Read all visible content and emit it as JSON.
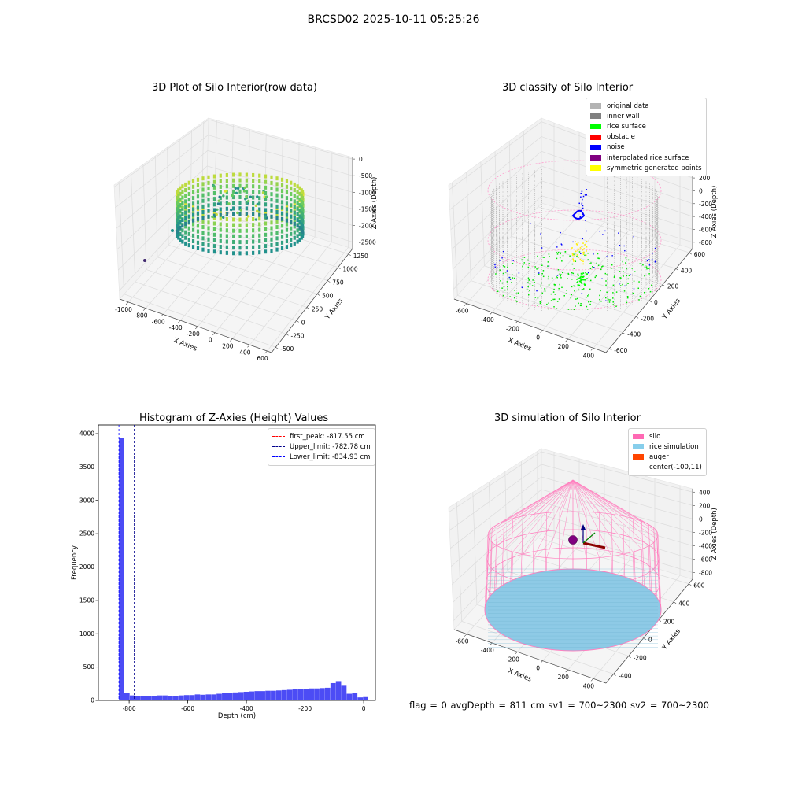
{
  "figure": {
    "suptitle": "BRCSD02 2025-10-11 05:25:26",
    "footer": "flag = 0     avgDepth = 811 cm  sv1 = 700~2300  sv2 = 700~2300"
  },
  "chart_data": [
    {
      "type": "scatter",
      "projection": "3d",
      "title": "3D Plot of Silo Interior(row data)",
      "xlabel": "X Axies",
      "ylabel": "Y Axies",
      "zlabel": "Z Axies (Depth)",
      "xticks": [
        -1000,
        -800,
        -600,
        -400,
        -200,
        0,
        200,
        400,
        600
      ],
      "yticks": [
        -500,
        -250,
        0,
        250,
        500,
        750,
        1000,
        1250
      ],
      "zticks": [
        -2500,
        -2000,
        -1500,
        -1000,
        -500,
        0
      ],
      "xlim": [
        -1100,
        650
      ],
      "ylim": [
        -600,
        1350
      ],
      "zlim": [
        -2700,
        50
      ],
      "colormap": "viridis",
      "grid": true
    },
    {
      "type": "scatter",
      "projection": "3d",
      "title": "3D classify of Silo Interior",
      "xlabel": "X Axies",
      "ylabel": "Y Axies",
      "zlabel": "Z Axies (Depth)",
      "xticks": [
        -600,
        -400,
        -200,
        0,
        200,
        400
      ],
      "yticks": [
        -600,
        -400,
        -200,
        0,
        200,
        400,
        600
      ],
      "zticks": [
        -800,
        -600,
        -400,
        -200,
        0,
        200
      ],
      "xlim": [
        -700,
        500
      ],
      "ylim": [
        -650,
        650
      ],
      "zlim": [
        -900,
        250
      ],
      "legend_position": "top-right",
      "grid": true,
      "series": [
        {
          "name": "original data",
          "color": "#b3b3b3"
        },
        {
          "name": "inner wall",
          "color": "#808080"
        },
        {
          "name": "rice surface",
          "color": "#00ff00"
        },
        {
          "name": "obstacle",
          "color": "#ff0000"
        },
        {
          "name": "noise",
          "color": "#0000ff"
        },
        {
          "name": "interpolated rice surface",
          "color": "#800080"
        },
        {
          "name": "symmetric generated points",
          "color": "#ffff00"
        }
      ]
    },
    {
      "type": "bar",
      "title": "Histogram of Z-Axies (Height) Values",
      "xlabel": "Depth (cm)",
      "ylabel": "Frequency",
      "xlim": [
        -905,
        40
      ],
      "ylim": [
        0,
        4130
      ],
      "xticks": [
        -800,
        -600,
        -400,
        -200,
        0
      ],
      "yticks": [
        0,
        500,
        1000,
        1500,
        2000,
        2500,
        3000,
        3500,
        4000
      ],
      "bar_color": "#4c4cf5",
      "bin_width": 18.5,
      "bin_starts": [
        -834.9,
        -816.4,
        -797.9,
        -779.4,
        -760.9,
        -742.4,
        -723.9,
        -705.4,
        -686.9,
        -668.4,
        -649.9,
        -631.4,
        -612.9,
        -594.4,
        -575.9,
        -557.4,
        -538.9,
        -520.4,
        -501.9,
        -483.4,
        -464.9,
        -446.4,
        -427.9,
        -409.4,
        -390.9,
        -372.4,
        -353.9,
        -335.4,
        -316.9,
        -298.4,
        -279.9,
        -261.4,
        -242.9,
        -224.4,
        -205.9,
        -187.4,
        -168.9,
        -150.4,
        -131.9,
        -113.4,
        -94.9,
        -76.4,
        -57.9,
        -39.4,
        -20.9,
        -2.4
      ],
      "values": [
        3930,
        110,
        75,
        70,
        70,
        65,
        60,
        75,
        75,
        65,
        70,
        75,
        80,
        80,
        90,
        85,
        90,
        90,
        100,
        110,
        110,
        120,
        125,
        130,
        135,
        140,
        140,
        145,
        145,
        150,
        155,
        160,
        165,
        165,
        170,
        180,
        180,
        185,
        190,
        260,
        290,
        220,
        100,
        115,
        45,
        50
      ],
      "legend_position": "top-right",
      "vlines": [
        {
          "name": "first_peak: -817.55 cm",
          "x": -817.55,
          "color": "#ff0000"
        },
        {
          "name": "Upper_limit: -782.78 cm",
          "x": -782.78,
          "color": "#00008b"
        },
        {
          "name": "Lower_limit: -834.93 cm",
          "x": -834.93,
          "color": "#0000ff"
        }
      ]
    },
    {
      "type": "scatter",
      "projection": "3d",
      "title": "3D simulation of Silo Interior",
      "xlabel": "X Axies",
      "ylabel": "Y Axies",
      "zlabel": "Z Axies (Depth)",
      "xticks": [
        -600,
        -400,
        -200,
        0,
        200,
        400
      ],
      "yticks": [
        -400,
        -200,
        0,
        200,
        400,
        600
      ],
      "zticks": [
        -800,
        -600,
        -400,
        -200,
        0,
        200,
        400
      ],
      "xlim": [
        -700,
        500
      ],
      "ylim": [
        -500,
        650
      ],
      "zlim": [
        -900,
        450
      ],
      "legend_position": "top-right",
      "grid": true,
      "series": [
        {
          "name": "silo",
          "color": "#ff69b4"
        },
        {
          "name": "rice simulation",
          "color": "#87ceeb"
        },
        {
          "name": "auger",
          "color": "#ff4500"
        },
        {
          "name": "center(-100,11)",
          "color": "#800080"
        }
      ]
    }
  ]
}
